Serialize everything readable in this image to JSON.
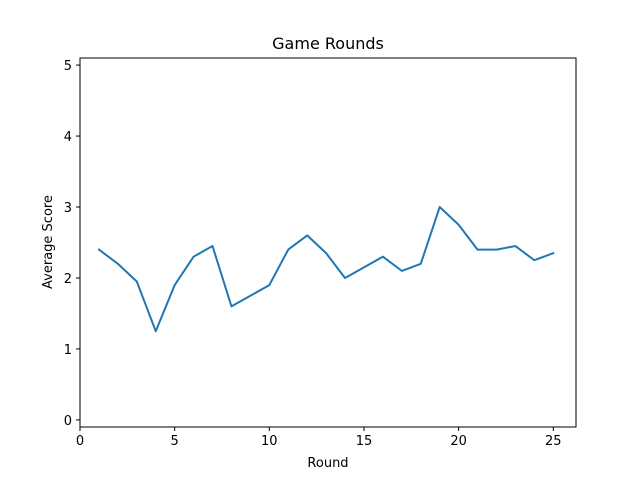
{
  "chart_data": {
    "type": "line",
    "title": "Game Rounds",
    "xlabel": "Round",
    "ylabel": "Average Score",
    "xlim": [
      0,
      26.2
    ],
    "ylim": [
      -0.1,
      5.1
    ],
    "x_ticks": [
      0,
      5,
      10,
      15,
      20,
      25
    ],
    "y_ticks": [
      0,
      1,
      2,
      3,
      4,
      5
    ],
    "grid": false,
    "series": [
      {
        "color": "#1f77b4",
        "x": [
          1,
          2,
          3,
          4,
          5,
          6,
          7,
          8,
          9,
          10,
          11,
          12,
          13,
          14,
          15,
          16,
          17,
          18,
          19,
          20,
          21,
          22,
          23,
          24,
          25
        ],
        "y": [
          2.4,
          2.2,
          1.95,
          1.25,
          1.9,
          2.3,
          2.45,
          1.6,
          1.75,
          1.9,
          2.4,
          2.6,
          2.35,
          2.0,
          2.15,
          2.3,
          2.1,
          2.2,
          3.0,
          2.75,
          2.4,
          2.4,
          2.45,
          2.25,
          2.35
        ]
      }
    ]
  }
}
